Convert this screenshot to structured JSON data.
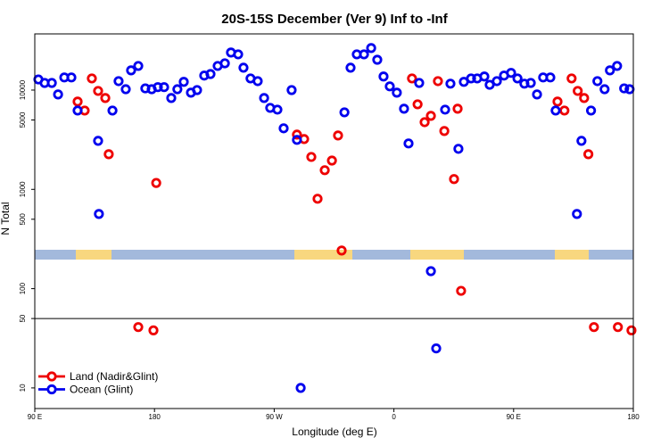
{
  "chart_data": {
    "type": "scatter",
    "title": "20S-15S December (Ver 9)   Inf to -Inf",
    "x_label": "Longitude (deg E)",
    "y_label": "N Total",
    "log_y": true,
    "grid": false,
    "legend_position": "bottom-left",
    "xlim": [
      90,
      540
    ],
    "xticks": [
      {
        "value": 90,
        "label": "90 E"
      },
      {
        "value": 180,
        "label": "180"
      },
      {
        "value": 270,
        "label": "90 W"
      },
      {
        "value": 360,
        "label": "0"
      },
      {
        "value": 450,
        "label": "90 E"
      },
      {
        "value": 540,
        "label": "180"
      }
    ],
    "ylim": [
      6.2,
      36800
    ],
    "yticks": [
      10,
      50,
      100,
      500,
      1000,
      5000,
      10000
    ],
    "hline": 50,
    "series": [
      {
        "name": "Land (Nadir&Glint)",
        "color": "#ee0000",
        "x": [
          122.2,
          127.5,
          132.9,
          137.6,
          143.0,
          145.6,
          167.8,
          179.2,
          181.3,
          287.1,
          292.5,
          297.9,
          302.6,
          308.0,
          313.4,
          318.0,
          320.7,
          373.6,
          377.8,
          383.1,
          387.8,
          393.1,
          397.9,
          405.2,
          407.9,
          410.5,
          483.0,
          488.2,
          493.6,
          498.2,
          503.0,
          506.2,
          510.4,
          528.4,
          538.6
        ],
        "values": [
          7660,
          6220,
          13100,
          9800,
          8320,
          2260,
          41,
          38,
          1160,
          3560,
          3210,
          2120,
          804,
          1560,
          1950,
          3490,
          242,
          13100,
          7190,
          4750,
          5500,
          12300,
          3870,
          1270,
          6490,
          95,
          7660,
          6220,
          13100,
          9800,
          8320,
          2260,
          41,
          41,
          38
        ]
      },
      {
        "name": "Ocean (Glint)",
        "color": "#0000ee",
        "x": [
          92.7,
          97.4,
          102.8,
          107.5,
          112.2,
          117.5,
          122.2,
          137.6,
          138.2,
          148.4,
          153.0,
          158.4,
          162.4,
          167.8,
          173.1,
          177.9,
          182.5,
          187.2,
          192.6,
          197.2,
          202.0,
          207.4,
          212.0,
          217.4,
          222.1,
          227.5,
          232.9,
          237.5,
          242.9,
          246.9,
          252.2,
          257.6,
          262.4,
          267.0,
          272.4,
          277.1,
          283.1,
          287.1,
          289.9,
          322.8,
          327.4,
          332.1,
          337.5,
          342.9,
          347.5,
          352.2,
          356.9,
          362.2,
          367.6,
          371.0,
          379.0,
          387.8,
          391.8,
          398.5,
          402.5,
          408.5,
          412.6,
          418.0,
          422.6,
          428.0,
          432.0,
          437.4,
          442.8,
          448.1,
          452.9,
          458.1,
          462.9,
          467.6,
          472.2,
          477.6,
          481.6,
          497.6,
          501.0,
          508.2,
          513.0,
          518.4,
          522.4,
          527.8,
          533.1,
          537.2
        ],
        "values": [
          12800,
          11800,
          11800,
          9040,
          13400,
          13400,
          6220,
          3080,
          565,
          6220,
          12300,
          10200,
          15800,
          17500,
          10400,
          10200,
          10700,
          10700,
          8320,
          10200,
          12100,
          9420,
          10000,
          14000,
          14500,
          17500,
          18600,
          23900,
          22900,
          16800,
          13100,
          12300,
          8320,
          6620,
          6350,
          4120,
          10000,
          3150,
          10,
          5970,
          16800,
          22900,
          22900,
          26500,
          20200,
          13700,
          10900,
          9420,
          6490,
          2900,
          11800,
          150,
          25,
          6350,
          11600,
          2560,
          12100,
          13100,
          13100,
          13700,
          11300,
          12300,
          14000,
          14900,
          13100,
          11600,
          11800,
          9040,
          13400,
          13400,
          6220,
          565,
          3080,
          6220,
          12300,
          10200,
          15800,
          17500,
          10400,
          10200
        ]
      }
    ]
  }
}
